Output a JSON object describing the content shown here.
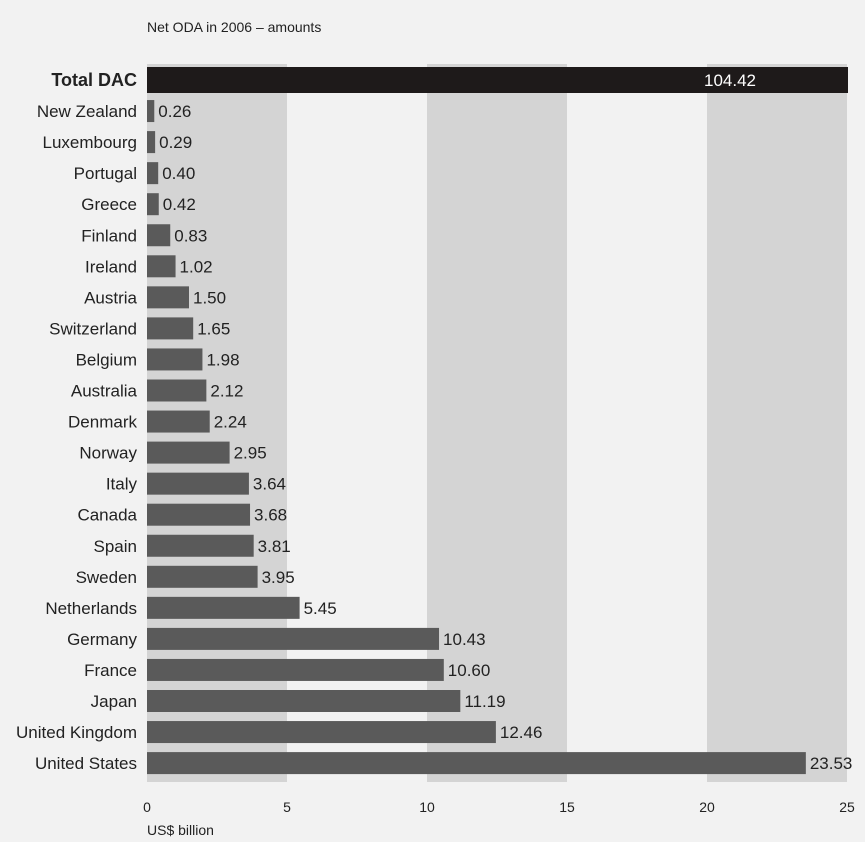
{
  "chart_data": {
    "type": "bar",
    "orientation": "horizontal",
    "title": "Net ODA in 2006 – amounts",
    "xlabel": "US$ billion",
    "xlim": [
      0,
      25
    ],
    "xticks": [
      0,
      5,
      10,
      15,
      20,
      25
    ],
    "background_bands": "alternating grey bands every 5 units",
    "total": {
      "label": "Total DAC",
      "value": 104.42,
      "value_label": "104.42"
    },
    "categories": [
      "New Zealand",
      "Luxembourg",
      "Portugal",
      "Greece",
      "Finland",
      "Ireland",
      "Austria",
      "Switzerland",
      "Belgium",
      "Australia",
      "Denmark",
      "Norway",
      "Italy",
      "Canada",
      "Spain",
      "Sweden",
      "Netherlands",
      "Germany",
      "France",
      "Japan",
      "United Kingdom",
      "United States"
    ],
    "values": [
      0.26,
      0.29,
      0.4,
      0.42,
      0.83,
      1.02,
      1.5,
      1.65,
      1.98,
      2.12,
      2.24,
      2.95,
      3.64,
      3.68,
      3.81,
      3.95,
      5.45,
      10.43,
      10.6,
      11.19,
      12.46,
      23.53
    ],
    "value_labels": [
      "0.26",
      "0.29",
      "0.40",
      "0.42",
      "0.83",
      "1.02",
      "1.50",
      "1.65",
      "1.98",
      "2.12",
      "2.24",
      "2.95",
      "3.64",
      "3.68",
      "3.81",
      "3.95",
      "5.45",
      "10.43",
      "10.60",
      "11.19",
      "12.46",
      "23.53"
    ],
    "colors": {
      "bar": "#5a5a5a",
      "total_bar": "#1e1a1a",
      "band": "#d4d4d4",
      "background": "#f2f2f2"
    }
  }
}
